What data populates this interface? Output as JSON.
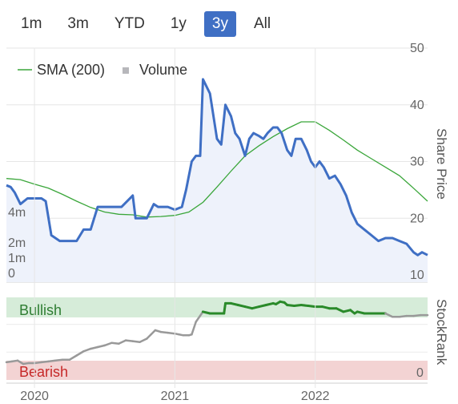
{
  "range_buttons": [
    {
      "label": "1m",
      "active": false
    },
    {
      "label": "3m",
      "active": false
    },
    {
      "label": "YTD",
      "active": false
    },
    {
      "label": "1y",
      "active": false
    },
    {
      "label": "3y",
      "active": true
    },
    {
      "label": "All",
      "active": false
    }
  ],
  "colors": {
    "price": "#3f6fc4",
    "sma": "#3aa63a",
    "volume": "#c4c4c8",
    "bullish_band": "#d6ecd9",
    "bearish_band": "#f3d3d3",
    "bullish_text": "#2e7d32",
    "bearish_text": "#c62828",
    "stockrank_bull": "#2a8a2a",
    "stockrank_neutral": "#999999"
  },
  "chart_data": [
    {
      "type": "line",
      "title": "",
      "legend": [
        {
          "name": "SMA (200)",
          "type": "line"
        },
        {
          "name": "Volume",
          "type": "bar"
        }
      ],
      "legend_position": "top-left",
      "xlabel": "",
      "ylabel": "Share Price",
      "ylim": [
        10,
        50
      ],
      "y_ticks": [
        "10",
        "20",
        "30",
        "40",
        "50"
      ],
      "volume_ticks": [
        "0",
        "1m",
        "2m",
        "4m"
      ],
      "x_ticks": [
        "2020",
        "2021",
        "2022"
      ],
      "xlim": [
        2019.8,
        2022.8
      ],
      "grid": true,
      "price_series": {
        "name": "Share Price",
        "x": [
          2019.8,
          2019.83,
          2019.86,
          2019.9,
          2019.95,
          2020.0,
          2020.05,
          2020.08,
          2020.12,
          2020.18,
          2020.22,
          2020.28,
          2020.3,
          2020.35,
          2020.4,
          2020.45,
          2020.5,
          2020.55,
          2020.62,
          2020.7,
          2020.72,
          2020.75,
          2020.8,
          2020.85,
          2020.88,
          2020.95,
          2021.0,
          2021.05,
          2021.08,
          2021.12,
          2021.15,
          2021.18,
          2021.2,
          2021.25,
          2021.3,
          2021.33,
          2021.36,
          2021.4,
          2021.43,
          2021.46,
          2021.5,
          2021.53,
          2021.56,
          2021.6,
          2021.63,
          2021.66,
          2021.7,
          2021.73,
          2021.76,
          2021.8,
          2021.83,
          2021.86,
          2021.9,
          2021.94,
          2021.97,
          2022.0,
          2022.03,
          2022.06,
          2022.1,
          2022.14,
          2022.18,
          2022.22,
          2022.26,
          2022.3,
          2022.35,
          2022.4,
          2022.45,
          2022.5,
          2022.55,
          2022.6,
          2022.65,
          2022.7,
          2022.73,
          2022.76,
          2022.8
        ],
        "y": [
          25.8,
          25.5,
          24.5,
          22.5,
          23.5,
          23.5,
          23.5,
          23,
          17,
          16,
          16,
          16,
          16,
          18,
          18,
          22,
          22,
          22,
          22,
          24,
          20,
          20,
          20,
          22.5,
          22,
          22,
          21.5,
          22,
          25,
          30,
          31,
          31,
          44.5,
          42,
          34,
          33,
          40,
          38,
          35,
          34,
          31,
          34,
          35,
          34.5,
          34,
          35,
          36,
          36,
          35,
          32,
          31,
          34,
          34,
          32,
          30,
          29,
          30,
          29,
          27,
          27.5,
          26,
          24,
          21,
          19,
          18,
          17,
          16,
          16.5,
          16.5,
          16,
          15.5,
          14,
          13.5,
          14,
          13.5
        ]
      },
      "sma_series": {
        "name": "SMA (200)",
        "x": [
          2019.8,
          2019.9,
          2020.0,
          2020.1,
          2020.2,
          2020.3,
          2020.4,
          2020.5,
          2020.6,
          2020.7,
          2020.8,
          2020.9,
          2021.0,
          2021.1,
          2021.2,
          2021.3,
          2021.4,
          2021.5,
          2021.6,
          2021.7,
          2021.8,
          2021.9,
          2022.0,
          2022.1,
          2022.2,
          2022.3,
          2022.4,
          2022.5,
          2022.6,
          2022.7,
          2022.8
        ],
        "y": [
          27,
          26.8,
          26,
          25.3,
          24.2,
          23,
          21.9,
          21.1,
          20.7,
          20.6,
          20.2,
          20.3,
          20.5,
          21.1,
          22.8,
          25.5,
          28.3,
          31,
          32.8,
          34.4,
          35.8,
          37,
          37,
          35.5,
          33.8,
          32,
          30.5,
          29,
          27.5,
          25.3,
          23
        ]
      },
      "volume_series": {
        "name": "Volume",
        "x": [
          2019.82,
          2019.86,
          2019.9,
          2019.95,
          2020.02,
          2020.08,
          2020.12,
          2020.16,
          2020.2,
          2020.24,
          2020.28,
          2020.32,
          2020.36,
          2020.42,
          2020.46,
          2020.5,
          2020.55,
          2020.6,
          2020.64,
          2020.68,
          2020.72,
          2020.76,
          2020.8,
          2020.84,
          2020.9,
          2020.95,
          2021.0,
          2021.04,
          2021.08,
          2021.12,
          2021.16,
          2021.2,
          2021.24,
          2021.28,
          2021.3,
          2021.33,
          2021.36,
          2021.4,
          2021.44,
          2021.48,
          2021.52,
          2021.56,
          2021.6,
          2021.64,
          2021.68,
          2021.72,
          2021.76,
          2021.8,
          2021.84,
          2021.88,
          2021.92,
          2021.96,
          2022.0,
          2022.04,
          2022.08,
          2022.12,
          2022.16,
          2022.2,
          2022.24,
          2022.28,
          2022.32,
          2022.36,
          2022.4,
          2022.44,
          2022.48,
          2022.52,
          2022.56,
          2022.6,
          2022.64,
          2022.68,
          2022.72,
          2022.76
        ],
        "values": [
          0.5,
          0.2,
          1.5,
          0.8,
          0.3,
          1.2,
          0.3,
          0.6,
          0.3,
          0.4,
          0.3,
          1.1,
          0.4,
          0.3,
          1.0,
          1.5,
          0.3,
          0.8,
          0.3,
          0.4,
          0.5,
          0.3,
          2.8,
          0.6,
          0.3,
          0.4,
          0.3,
          2.4,
          0.6,
          0.8,
          1.4,
          1.1,
          2.2,
          0.5,
          2.5,
          1.0,
          0.5,
          0.8,
          0.6,
          0.5,
          1.2,
          0.8,
          0.4,
          1.0,
          0.3,
          0.8,
          0.5,
          0.3,
          1.1,
          0.7,
          0.9,
          0.4,
          0.6,
          1.0,
          0.5,
          0.3,
          1.5,
          1.0,
          0.6,
          1.2,
          0.7,
          0.5,
          0.3,
          0.6,
          1.0,
          1.8,
          1.3,
          0.8,
          0.6,
          1.6,
          1.0,
          0.9
        ]
      }
    },
    {
      "type": "line",
      "title": "",
      "ylabel": "StockRank",
      "bands": {
        "top_label": "Bullish",
        "bottom_label": "Bearish",
        "bottom_value": "0"
      },
      "ylim": [
        0,
        100
      ],
      "stockrank_series": {
        "name": "StockRank",
        "x": [
          2019.8,
          2019.84,
          2019.88,
          2019.92,
          2019.96,
          2020.0,
          2020.05,
          2020.1,
          2020.15,
          2020.2,
          2020.25,
          2020.3,
          2020.35,
          2020.4,
          2020.45,
          2020.5,
          2020.55,
          2020.6,
          2020.65,
          2020.7,
          2020.75,
          2020.8,
          2020.83,
          2020.86,
          2020.9,
          2020.95,
          2021.0,
          2021.03,
          2021.06,
          2021.1,
          2021.12,
          2021.15,
          2021.2,
          2021.25,
          2021.3,
          2021.32,
          2021.35,
          2021.36,
          2021.4,
          2021.45,
          2021.5,
          2021.55,
          2021.6,
          2021.65,
          2021.7,
          2021.72,
          2021.75,
          2021.78,
          2021.8,
          2021.85,
          2021.9,
          2021.95,
          2022.0,
          2022.05,
          2022.1,
          2022.15,
          2022.2,
          2022.25,
          2022.28,
          2022.3,
          2022.35,
          2022.4,
          2022.45,
          2022.5,
          2022.55,
          2022.6,
          2022.65,
          2022.7,
          2022.75,
          2022.8
        ],
        "y": [
          22,
          23,
          24,
          20,
          21,
          21,
          22,
          23,
          24,
          25,
          25,
          30,
          35,
          38,
          40,
          42,
          45,
          44,
          48,
          47,
          46,
          50,
          55,
          60,
          58,
          57,
          56,
          55,
          54,
          54,
          55,
          70,
          82,
          80,
          80,
          80,
          80,
          92,
          92,
          90,
          88,
          86,
          88,
          90,
          92,
          91,
          94,
          93,
          90,
          89,
          90,
          89,
          88,
          88,
          86,
          86,
          82,
          84,
          80,
          82,
          80,
          80,
          80,
          80,
          76,
          76,
          77,
          77,
          78,
          78
        ]
      }
    }
  ]
}
